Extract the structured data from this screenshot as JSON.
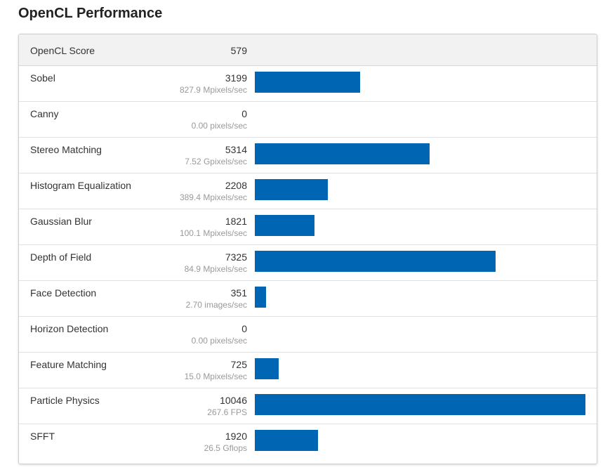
{
  "page": {
    "title": "OpenCL Performance"
  },
  "score": {
    "label": "OpenCL Score",
    "value": "579"
  },
  "colors": {
    "bar": "#0066b3",
    "header_bg": "#f2f2f2"
  },
  "chart_data": {
    "type": "bar",
    "categories": [
      "Sobel",
      "Canny",
      "Stereo Matching",
      "Histogram Equalization",
      "Gaussian Blur",
      "Depth of Field",
      "Face Detection",
      "Horizon Detection",
      "Feature Matching",
      "Particle Physics",
      "SFFT"
    ],
    "values": [
      3199,
      0,
      5314,
      2208,
      1821,
      7325,
      351,
      0,
      725,
      10046,
      1920
    ],
    "xlim": [
      0,
      10046
    ]
  },
  "rows": [
    {
      "name": "Sobel",
      "score": "3199",
      "sub": "827.9 Mpixels/sec"
    },
    {
      "name": "Canny",
      "score": "0",
      "sub": "0.00 pixels/sec"
    },
    {
      "name": "Stereo Matching",
      "score": "5314",
      "sub": "7.52 Gpixels/sec"
    },
    {
      "name": "Histogram Equalization",
      "score": "2208",
      "sub": "389.4 Mpixels/sec"
    },
    {
      "name": "Gaussian Blur",
      "score": "1821",
      "sub": "100.1 Mpixels/sec"
    },
    {
      "name": "Depth of Field",
      "score": "7325",
      "sub": "84.9 Mpixels/sec"
    },
    {
      "name": "Face Detection",
      "score": "351",
      "sub": "2.70 images/sec"
    },
    {
      "name": "Horizon Detection",
      "score": "0",
      "sub": "0.00 pixels/sec"
    },
    {
      "name": "Feature Matching",
      "score": "725",
      "sub": "15.0 Mpixels/sec"
    },
    {
      "name": "Particle Physics",
      "score": "10046",
      "sub": "267.6 FPS"
    },
    {
      "name": "SFFT",
      "score": "1920",
      "sub": "26.5 Gflops"
    }
  ]
}
